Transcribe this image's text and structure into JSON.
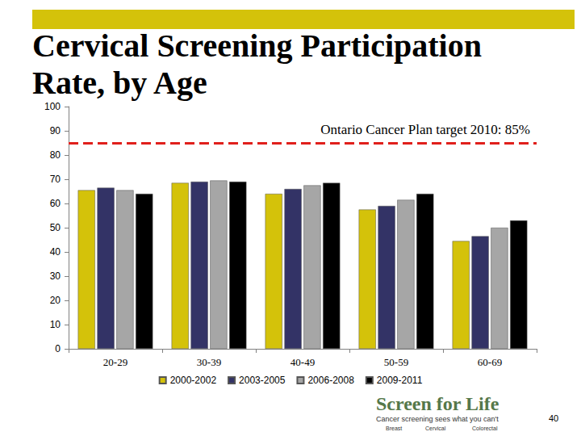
{
  "chart_data": {
    "type": "bar",
    "title": "Cervical Screening Participation Rate, by Age",
    "categories": [
      "20-29",
      "30-39",
      "40-49",
      "50-59",
      "60-69"
    ],
    "series": [
      {
        "name": "2000-2002",
        "color": "#d4c20a",
        "values": [
          65.5,
          68.5,
          64,
          57.5,
          44.5
        ]
      },
      {
        "name": "2003-2005",
        "color": "#333366",
        "values": [
          66.5,
          69,
          66,
          59,
          46.5
        ]
      },
      {
        "name": "2006-2008",
        "color": "#a6a6a6",
        "values": [
          65.5,
          69.5,
          67.5,
          61.5,
          50
        ]
      },
      {
        "name": "2009-2011",
        "color": "#000000",
        "values": [
          64,
          69,
          68.5,
          64,
          53
        ]
      }
    ],
    "target": {
      "value": 85,
      "label": "Ontario Cancer Plan target 2010: 85%",
      "color": "#e0201c",
      "line_style": "dashed"
    },
    "ylim": [
      0,
      100
    ],
    "yticks": [
      0,
      10,
      20,
      30,
      40,
      50,
      60,
      70,
      80,
      90,
      100
    ],
    "grid": false,
    "legend": "bottom",
    "annotations": [
      "Screen for Life",
      "Cancer screening sees what you can't",
      "Breast",
      "Cervical",
      "Colorectal",
      "40"
    ]
  }
}
